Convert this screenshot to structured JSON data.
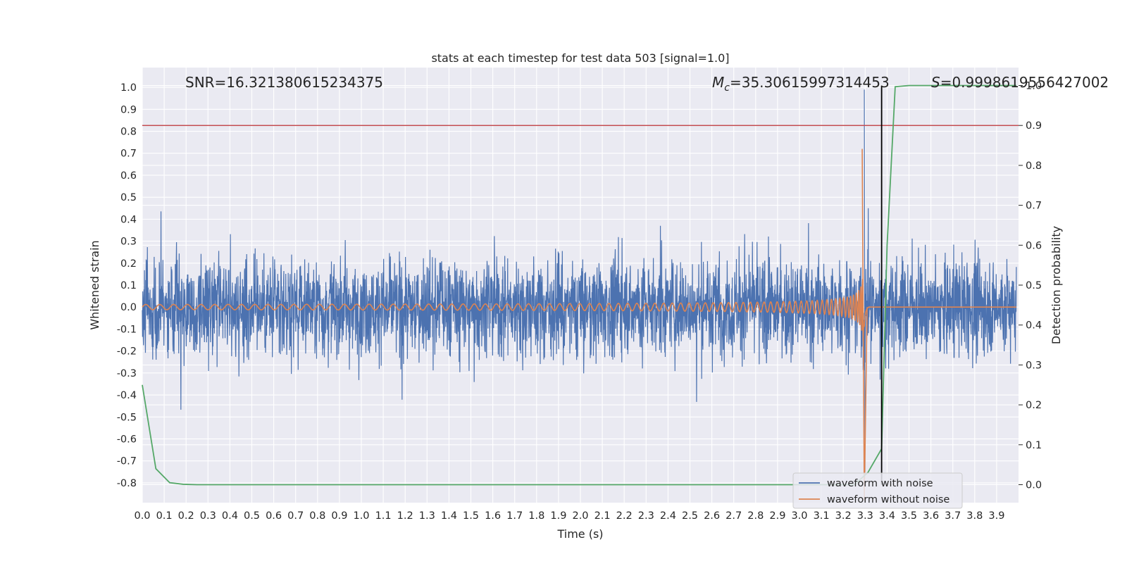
{
  "chart_data": {
    "type": "line",
    "title": "stats at each timestep for test data 503 [signal=1.0]",
    "xlabel": "Time (s)",
    "ylabel": "Whitened strain",
    "ylabel_right": "Detection probability",
    "xlim": [
      0.0,
      4.0
    ],
    "ylim": [
      -0.89,
      1.09
    ],
    "ylim_right": [
      -0.045,
      1.045
    ],
    "x_ticks": [
      0.0,
      0.1,
      0.2,
      0.3,
      0.4,
      0.5,
      0.6,
      0.7,
      0.8,
      0.9,
      1.0,
      1.1,
      1.2,
      1.3,
      1.4,
      1.5,
      1.6,
      1.7,
      1.8,
      1.9,
      2.0,
      2.1,
      2.2,
      2.3,
      2.4,
      2.5,
      2.6,
      2.7,
      2.8,
      2.9,
      3.0,
      3.1,
      3.2,
      3.3,
      3.4,
      3.5,
      3.6,
      3.7,
      3.8,
      3.9
    ],
    "y_ticks": [
      1.0,
      0.9,
      0.8,
      0.7,
      0.6,
      0.5,
      0.4,
      0.3,
      0.2,
      0.1,
      0.0,
      -0.1,
      -0.2,
      -0.3,
      -0.4,
      -0.5,
      -0.6,
      -0.7,
      -0.8
    ],
    "y_ticks_right": [
      1.0,
      0.9,
      0.8,
      0.7,
      0.6,
      0.5,
      0.4,
      0.3,
      0.2,
      0.1,
      0.0
    ],
    "grid": true,
    "legend_position": "lower-right",
    "annotations": {
      "snr": "SNR=16.321380615234375",
      "mc_symbol": "M",
      "mc_sub": "c",
      "mc_value": "=35.30615997314453",
      "s_symbol": "S",
      "s_value": "=0.9998619556427002"
    },
    "series": [
      {
        "name": "waveform with noise",
        "color": "#4c72b0",
        "axis": "left",
        "description_values": {
          "amplitude_range": [
            -0.8,
            1.0
          ],
          "peak_time": 3.296
        }
      },
      {
        "name": "waveform without noise",
        "color": "#dd8452",
        "axis": "left",
        "chirp": {
          "start": 0.0,
          "merger": 3.296,
          "start_amplitude": 0.01,
          "peak_amplitude": 0.72,
          "min_value": -0.88
        }
      },
      {
        "name": "",
        "color": "#55a868",
        "axis": "right",
        "x": [
          0.0,
          0.062,
          0.125,
          0.187,
          0.25,
          0.5,
          1.0,
          1.5,
          2.0,
          2.5,
          3.0,
          3.125,
          3.187,
          3.25,
          3.312,
          3.375,
          3.4,
          3.437,
          3.5,
          3.75,
          3.99
        ],
        "y": [
          0.25,
          0.04,
          0.005,
          0.001,
          0.0,
          0.0,
          0.0,
          0.0,
          0.0,
          0.0,
          0.0,
          0.0,
          0.0,
          0.0,
          0.03,
          0.09,
          0.6,
          0.997,
          1.0,
          1.0,
          1.0
        ]
      }
    ],
    "threshold_line": {
      "axis": "right",
      "y": 0.9,
      "color": "#c44e52"
    },
    "vertical_line": {
      "x": 3.375,
      "y_top": 1.0,
      "y_bottom": 0.0,
      "color": "#000000"
    }
  }
}
